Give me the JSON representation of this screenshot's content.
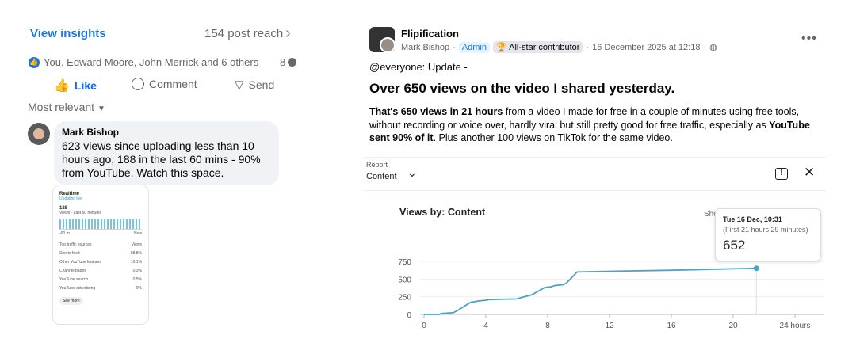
{
  "left": {
    "view_insights": "View insights",
    "post_reach": "154 post reach",
    "reactions": "You, Edward Moore, John Merrick and 6 others",
    "comment_count": "8",
    "actions": {
      "like": "Like",
      "comment": "Comment",
      "send": "Send"
    },
    "sort": "Most relevant",
    "comment": {
      "author": "Mark Bishop",
      "text": "623 views since uploading less than 10 hours ago, 188 in the last 60 mins - 90% from YouTube. Watch this space."
    },
    "attachment": {
      "title": "Realtime",
      "status": "Updating live",
      "count": "188",
      "range": "Views · Last 60 minutes",
      "axis_start": "-60 m",
      "axis_end": "Now",
      "sources_header": "Top traffic sources",
      "views_header": "Views",
      "sources": [
        {
          "name": "Shorts feed",
          "value": "88.8%"
        },
        {
          "name": "Other YouTube features",
          "value": "10.1%"
        },
        {
          "name": "Channel pages",
          "value": "0.3%"
        },
        {
          "name": "YouTube search",
          "value": "0.5%"
        },
        {
          "name": "YouTube advertising",
          "value": "0%"
        }
      ],
      "see_more": "See more"
    }
  },
  "post": {
    "group": "Flipification",
    "author": "Mark Bishop",
    "admin_badge": "Admin",
    "contributor_badge": "All-star contributor",
    "date": "16 December 2025 at 12:18",
    "mention": "@everyone: Update -",
    "headline": "Over 650 views on the video I shared yesterday.",
    "body_bold1": "That's 650 views in 21 hours",
    "body_text1": " from a video I made for free in a couple of minutes using free tools, without recording or voice over, hardly viral but still pretty good for free traffic, especially as ",
    "body_bold2": "YouTube sent 90% of it",
    "body_text2": ". Plus another 100 views on TikTok for the same video."
  },
  "report": {
    "label": "Report",
    "value": "Content",
    "show_partial": "Sho"
  },
  "tooltip": {
    "date": "Tue 16 Dec, 10:31",
    "subtitle": "(First 21 hours 29 minutes)",
    "value": "652"
  },
  "colors": {
    "line": "#4aa3c4",
    "link": "#1b74e4"
  },
  "chart_data": {
    "type": "line",
    "title": "Views by: Content",
    "x_ticks": [
      "0",
      "4",
      "8",
      "12",
      "16",
      "20",
      "24 hours"
    ],
    "x_tick_values": [
      0,
      4,
      8,
      12,
      16,
      20,
      24
    ],
    "y_ticks": [
      "0",
      "250",
      "500",
      "750"
    ],
    "y_tick_values": [
      0,
      250,
      500,
      750
    ],
    "xlim": [
      0,
      24
    ],
    "ylim": [
      0,
      750
    ],
    "grid": true,
    "points": [
      [
        0,
        0
      ],
      [
        1,
        0
      ],
      [
        1.1,
        12
      ],
      [
        1.9,
        25
      ],
      [
        2.2,
        60
      ],
      [
        3,
        170
      ],
      [
        3.5,
        190
      ],
      [
        4,
        200
      ],
      [
        4.2,
        210
      ],
      [
        6,
        220
      ],
      [
        6.5,
        250
      ],
      [
        7,
        280
      ],
      [
        7.8,
        380
      ],
      [
        8.2,
        390
      ],
      [
        8.5,
        410
      ],
      [
        9,
        420
      ],
      [
        9.2,
        440
      ],
      [
        9.9,
        600
      ],
      [
        12,
        610
      ],
      [
        16,
        625
      ],
      [
        20,
        645
      ],
      [
        21.5,
        652
      ]
    ]
  }
}
